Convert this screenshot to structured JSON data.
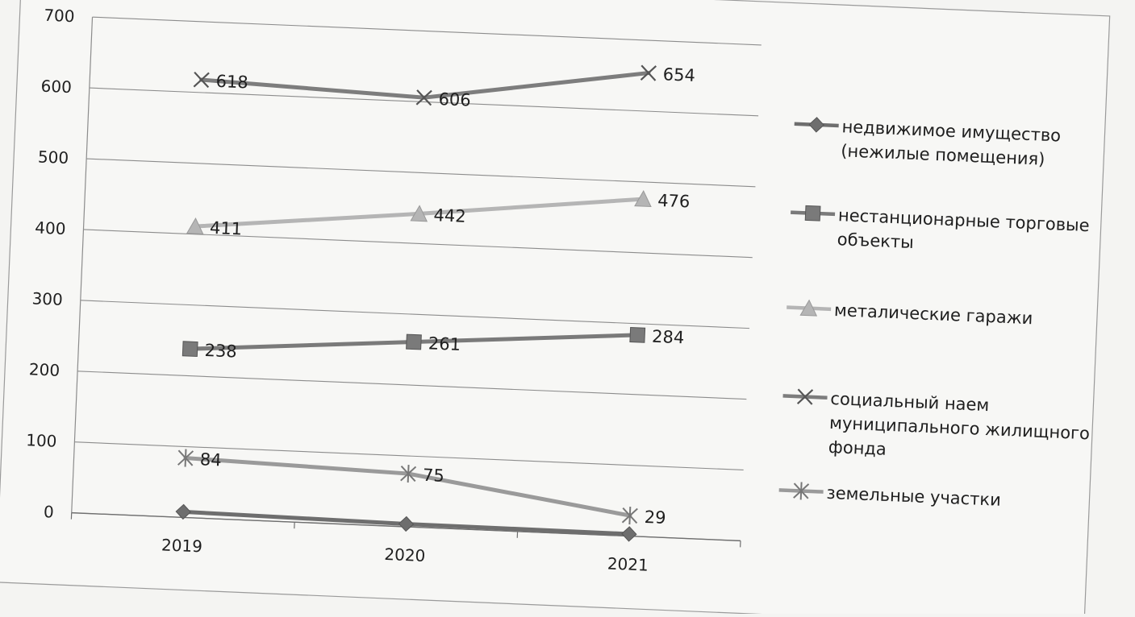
{
  "chart_data": {
    "type": "line",
    "title": "",
    "xlabel": "",
    "ylabel": "",
    "categories": [
      "2019",
      "2020",
      "2021"
    ],
    "ylim": [
      0,
      700
    ],
    "yticks": [
      "0",
      "100",
      "200",
      "300",
      "400",
      "500",
      "600",
      "700"
    ],
    "grid": true,
    "legend_position": "right",
    "series": [
      {
        "name": "недвижимое имущество (нежилые помещения)",
        "legend_lines": [
          "недвижимое имущество",
          "(нежилые помещения)"
        ],
        "marker": "diamond",
        "color": "#6e6e6e",
        "values": [
          8,
          4,
          3
        ],
        "labels": [
          "",
          "",
          ""
        ]
      },
      {
        "name": "нестанционарные торговые объекты",
        "legend_lines": [
          "нестанционарные торговые",
          "объекты"
        ],
        "marker": "square",
        "color": "#7a7a7a",
        "values": [
          238,
          261,
          284
        ],
        "labels": [
          "238",
          "261",
          "284"
        ]
      },
      {
        "name": "металические гаражи",
        "legend_lines": [
          "металические гаражи"
        ],
        "marker": "triangle",
        "color": "#b5b5b5",
        "values": [
          411,
          442,
          476
        ],
        "labels": [
          "411",
          "442",
          "476"
        ]
      },
      {
        "name": "социальный наем муниципального жилищного фонда",
        "legend_lines": [
          "социальный наем",
          "муниципального жилищного",
          "фонда"
        ],
        "marker": "x",
        "color": "#7d7d7d",
        "values": [
          618,
          606,
          654
        ],
        "labels": [
          "618",
          "606",
          "654"
        ]
      },
      {
        "name": "земельные участки",
        "legend_lines": [
          "земельные участки"
        ],
        "marker": "star",
        "color": "#9a9a9a",
        "values": [
          84,
          75,
          29
        ],
        "labels": [
          "84",
          "75",
          "29"
        ]
      }
    ]
  }
}
